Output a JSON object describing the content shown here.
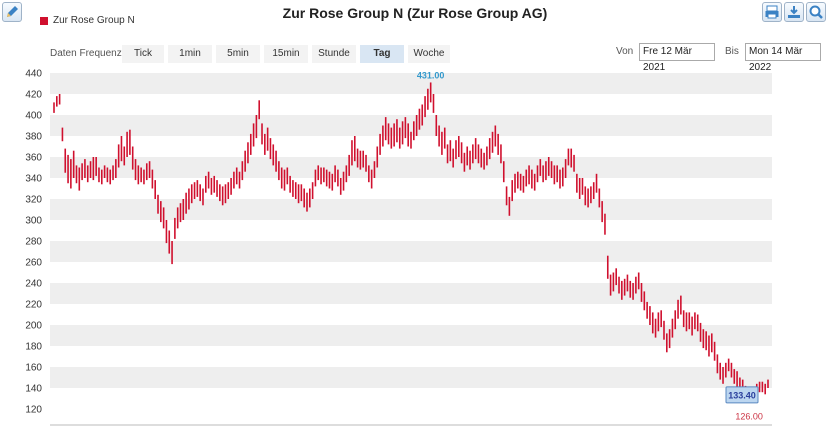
{
  "header": {
    "title": "Zur Rose Group N (Zur Rose Group AG)",
    "legend_label": "Zur Rose Group N"
  },
  "toolbar": {
    "left_icon": "pencil-icon",
    "right_icons": [
      "print-icon",
      "download-icon",
      "zoom-icon"
    ]
  },
  "frequency": {
    "label": "Daten Frequenz",
    "tabs": [
      "Tick",
      "1min",
      "5min",
      "15min",
      "Stunde",
      "Tag",
      "Woche"
    ],
    "active": "Tag"
  },
  "date_range": {
    "from_label": "Von",
    "from_value": "Fre 12 Mär 2021",
    "to_label": "Bis",
    "to_value": "Mon 14 Mär 2022"
  },
  "colors": {
    "series": "#d0102e",
    "band": "#eeeeee",
    "high_label": "#3399cc",
    "low_label": "#cc3344"
  },
  "chart_data": {
    "type": "ohlc",
    "x_start": "2021-03-12",
    "x_end": "2022-03-14",
    "ylim": [
      120,
      440
    ],
    "yticks": [
      120,
      140,
      160,
      180,
      200,
      220,
      240,
      260,
      280,
      300,
      320,
      340,
      360,
      380,
      400,
      420,
      440
    ],
    "grid": "alternating-bands",
    "annotations": {
      "high": "431.00",
      "low": "126.00",
      "last": "133.40"
    },
    "series": [
      {
        "values": [
          [
            402,
            412
          ],
          [
            408,
            418
          ],
          [
            410,
            420
          ],
          [
            375,
            388
          ],
          [
            345,
            368
          ],
          [
            335,
            362
          ],
          [
            330,
            358
          ],
          [
            340,
            366
          ],
          [
            335,
            352
          ],
          [
            328,
            350
          ],
          [
            338,
            354
          ],
          [
            340,
            358
          ],
          [
            336,
            352
          ],
          [
            340,
            356
          ],
          [
            338,
            360
          ],
          [
            342,
            360
          ],
          [
            336,
            350
          ],
          [
            334,
            348
          ],
          [
            340,
            352
          ],
          [
            336,
            350
          ],
          [
            334,
            348
          ],
          [
            338,
            352
          ],
          [
            340,
            358
          ],
          [
            350,
            372
          ],
          [
            356,
            380
          ],
          [
            352,
            370
          ],
          [
            360,
            384
          ],
          [
            362,
            386
          ],
          [
            348,
            370
          ],
          [
            338,
            358
          ],
          [
            334,
            352
          ],
          [
            336,
            350
          ],
          [
            334,
            348
          ],
          [
            338,
            354
          ],
          [
            340,
            356
          ],
          [
            330,
            348
          ],
          [
            320,
            338
          ],
          [
            306,
            324
          ],
          [
            298,
            318
          ],
          [
            292,
            312
          ],
          [
            278,
            300
          ],
          [
            268,
            290
          ],
          [
            258,
            280
          ],
          [
            282,
            302
          ],
          [
            292,
            312
          ],
          [
            298,
            316
          ],
          [
            300,
            320
          ],
          [
            306,
            326
          ],
          [
            310,
            330
          ],
          [
            316,
            334
          ],
          [
            320,
            336
          ],
          [
            322,
            338
          ],
          [
            318,
            334
          ],
          [
            314,
            330
          ],
          [
            326,
            342
          ],
          [
            330,
            346
          ],
          [
            324,
            340
          ],
          [
            326,
            342
          ],
          [
            322,
            338
          ],
          [
            318,
            334
          ],
          [
            314,
            332
          ],
          [
            316,
            334
          ],
          [
            320,
            336
          ],
          [
            324,
            340
          ],
          [
            330,
            346
          ],
          [
            334,
            350
          ],
          [
            330,
            346
          ],
          [
            338,
            356
          ],
          [
            346,
            366
          ],
          [
            354,
            374
          ],
          [
            362,
            382
          ],
          [
            370,
            392
          ],
          [
            378,
            400
          ],
          [
            396,
            414
          ],
          [
            372,
            392
          ],
          [
            362,
            382
          ],
          [
            366,
            388
          ],
          [
            358,
            378
          ],
          [
            352,
            372
          ],
          [
            346,
            366
          ],
          [
            338,
            356
          ],
          [
            330,
            350
          ],
          [
            328,
            348
          ],
          [
            334,
            350
          ],
          [
            326,
            342
          ],
          [
            322,
            338
          ],
          [
            320,
            336
          ],
          [
            316,
            334
          ],
          [
            318,
            334
          ],
          [
            312,
            330
          ],
          [
            308,
            326
          ],
          [
            312,
            330
          ],
          [
            320,
            336
          ],
          [
            332,
            348
          ],
          [
            338,
            352
          ],
          [
            334,
            350
          ],
          [
            336,
            350
          ],
          [
            332,
            348
          ],
          [
            330,
            346
          ],
          [
            328,
            344
          ],
          [
            336,
            352
          ],
          [
            332,
            348
          ],
          [
            324,
            340
          ],
          [
            328,
            346
          ],
          [
            336,
            352
          ],
          [
            342,
            362
          ],
          [
            352,
            376
          ],
          [
            356,
            380
          ],
          [
            350,
            368
          ],
          [
            348,
            366
          ],
          [
            350,
            366
          ],
          [
            346,
            362
          ],
          [
            336,
            352
          ],
          [
            330,
            348
          ],
          [
            340,
            356
          ],
          [
            350,
            370
          ],
          [
            362,
            382
          ],
          [
            370,
            390
          ],
          [
            376,
            398
          ],
          [
            372,
            392
          ],
          [
            368,
            388
          ],
          [
            370,
            392
          ],
          [
            374,
            396
          ],
          [
            368,
            388
          ],
          [
            372,
            394
          ],
          [
            378,
            398
          ],
          [
            370,
            392
          ],
          [
            368,
            384
          ],
          [
            376,
            394
          ],
          [
            380,
            400
          ],
          [
            386,
            406
          ],
          [
            390,
            410
          ],
          [
            398,
            418
          ],
          [
            405,
            425
          ],
          [
            412,
            431
          ],
          [
            402,
            420
          ],
          [
            380,
            400
          ],
          [
            370,
            390
          ],
          [
            362,
            384
          ],
          [
            368,
            388
          ],
          [
            354,
            372
          ],
          [
            356,
            376
          ],
          [
            350,
            368
          ],
          [
            358,
            376
          ],
          [
            360,
            380
          ],
          [
            354,
            374
          ],
          [
            346,
            364
          ],
          [
            352,
            370
          ],
          [
            348,
            366
          ],
          [
            354,
            372
          ],
          [
            358,
            378
          ],
          [
            354,
            372
          ],
          [
            350,
            368
          ],
          [
            348,
            364
          ],
          [
            352,
            370
          ],
          [
            358,
            378
          ],
          [
            364,
            384
          ],
          [
            370,
            390
          ],
          [
            362,
            382
          ],
          [
            354,
            372
          ],
          [
            336,
            356
          ],
          [
            314,
            332
          ],
          [
            304,
            322
          ],
          [
            318,
            338
          ],
          [
            326,
            344
          ],
          [
            330,
            346
          ],
          [
            328,
            344
          ],
          [
            326,
            342
          ],
          [
            332,
            348
          ],
          [
            334,
            352
          ],
          [
            330,
            348
          ],
          [
            328,
            344
          ],
          [
            336,
            352
          ],
          [
            342,
            358
          ],
          [
            336,
            352
          ],
          [
            338,
            356
          ],
          [
            342,
            360
          ],
          [
            340,
            356
          ],
          [
            334,
            352
          ],
          [
            336,
            352
          ],
          [
            330,
            348
          ],
          [
            332,
            350
          ],
          [
            340,
            358
          ],
          [
            352,
            368
          ],
          [
            350,
            368
          ],
          [
            346,
            362
          ],
          [
            326,
            344
          ],
          [
            320,
            340
          ],
          [
            324,
            340
          ],
          [
            314,
            332
          ],
          [
            312,
            330
          ],
          [
            316,
            332
          ],
          [
            320,
            336
          ],
          [
            326,
            344
          ],
          [
            312,
            330
          ],
          [
            298,
            318
          ],
          [
            286,
            306
          ],
          [
            244,
            266
          ],
          [
            228,
            248
          ],
          [
            232,
            250
          ],
          [
            238,
            254
          ],
          [
            230,
            246
          ],
          [
            224,
            242
          ],
          [
            228,
            244
          ],
          [
            232,
            248
          ],
          [
            226,
            242
          ],
          [
            224,
            240
          ],
          [
            230,
            246
          ],
          [
            234,
            250
          ],
          [
            222,
            240
          ],
          [
            214,
            232
          ],
          [
            206,
            222
          ],
          [
            200,
            218
          ],
          [
            192,
            212
          ],
          [
            188,
            206
          ],
          [
            194,
            212
          ],
          [
            198,
            214
          ],
          [
            186,
            204
          ],
          [
            174,
            192
          ],
          [
            178,
            196
          ],
          [
            188,
            206
          ],
          [
            196,
            214
          ],
          [
            206,
            224
          ],
          [
            210,
            228
          ],
          [
            198,
            214
          ],
          [
            194,
            212
          ],
          [
            196,
            212
          ],
          [
            190,
            208
          ],
          [
            196,
            212
          ],
          [
            194,
            210
          ],
          [
            184,
            202
          ],
          [
            178,
            196
          ],
          [
            176,
            194
          ],
          [
            170,
            190
          ],
          [
            174,
            192
          ],
          [
            166,
            184
          ],
          [
            154,
            172
          ],
          [
            148,
            164
          ],
          [
            144,
            160
          ],
          [
            150,
            164
          ],
          [
            156,
            168
          ],
          [
            150,
            164
          ],
          [
            144,
            158
          ],
          [
            140,
            156
          ],
          [
            136,
            150
          ],
          [
            140,
            148
          ],
          [
            134,
            142
          ],
          [
            130,
            140
          ],
          [
            126,
            136
          ],
          [
            128,
            140
          ],
          [
            132,
            144
          ],
          [
            136,
            146
          ],
          [
            136,
            146
          ],
          [
            134,
            144
          ],
          [
            140,
            148
          ]
        ]
      }
    ]
  }
}
